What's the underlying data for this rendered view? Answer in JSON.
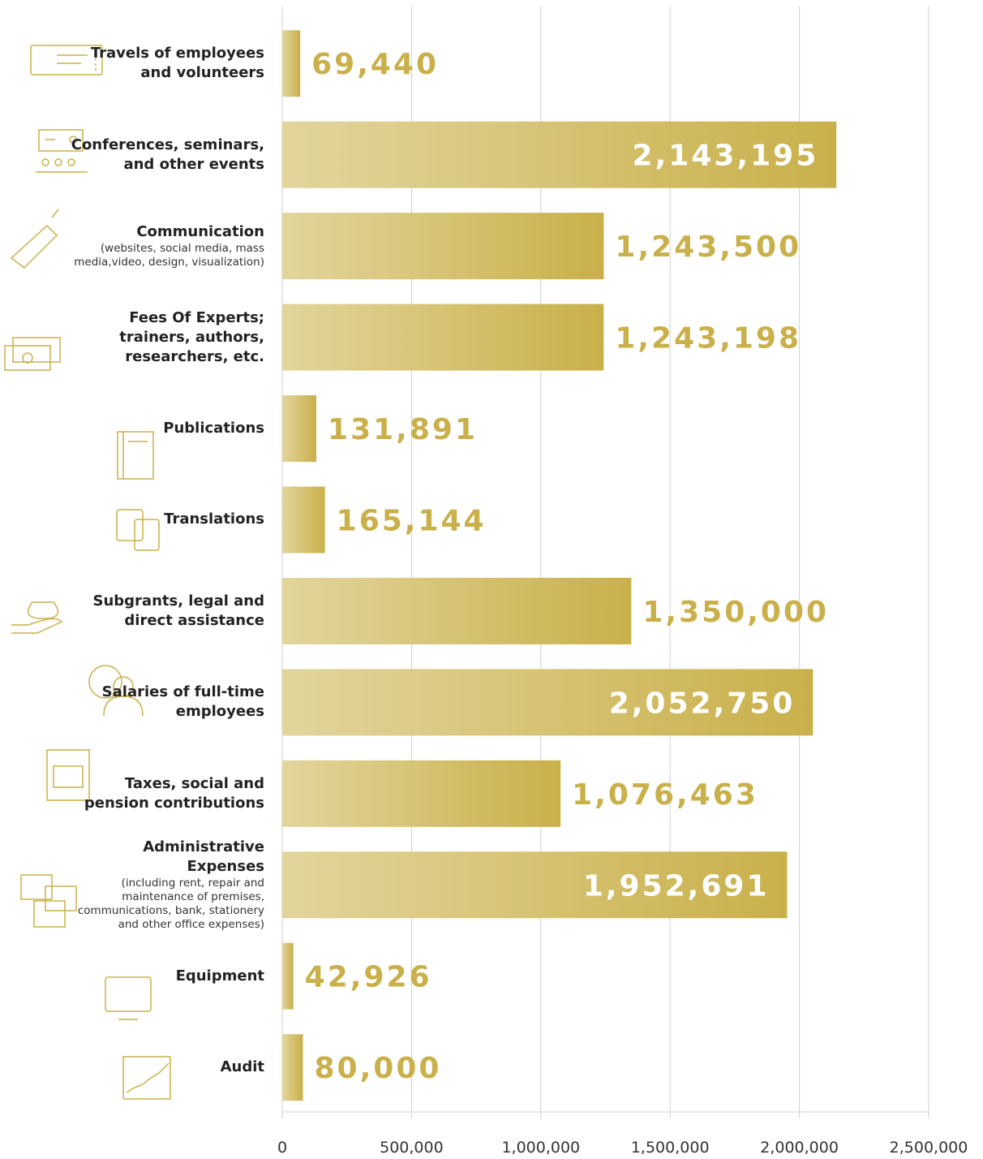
{
  "chart_data": {
    "type": "barh",
    "categories": [
      "Travels of employees and volunteers",
      "Conferences, seminars, and other events",
      "Communication",
      "Fees Of Experts; trainers, authors, researchers, etc.",
      "Publications",
      "Translations",
      "Subgrants, legal and direct assistance",
      "Salaries of full-time employees",
      "Taxes, social and pension contributions",
      "Administrative Expenses",
      "Equipment",
      "Audit"
    ],
    "category_notes": [
      null,
      null,
      "(websites, social media,  mass media,video, design, visualization)",
      null,
      null,
      null,
      null,
      null,
      null,
      "(including rent, repair and maintenance of premises, communications, bank, stationery and other office expenses)",
      null,
      null
    ],
    "values": [
      69440,
      2143195,
      1243500,
      1243198,
      131891,
      165144,
      1350000,
      2052750,
      1076463,
      1952691,
      42926,
      80000
    ],
    "value_labels": [
      "69,440",
      "2,143,195",
      "1,243,500",
      "1,243,198",
      "131,891",
      "165,144",
      "1,350,000",
      "2,052,750",
      "1,076,463",
      "1,952,691",
      "42,926",
      "80,000"
    ],
    "color": "#c9b04a",
    "color_light": "#e2d59c",
    "xlim": [
      0,
      2500000
    ],
    "xticks": [
      0,
      {
        "value": 500000,
        "label": "500,000"
      },
      {
        "value": 1000000,
        "label": "1,000,000"
      },
      {
        "value": 1500000,
        "label": "1,500,000"
      },
      {
        "value": 2000000,
        "label": "2,000,000"
      },
      {
        "value": 2500000,
        "label": "2,500,000"
      }
    ],
    "grid": true
  }
}
